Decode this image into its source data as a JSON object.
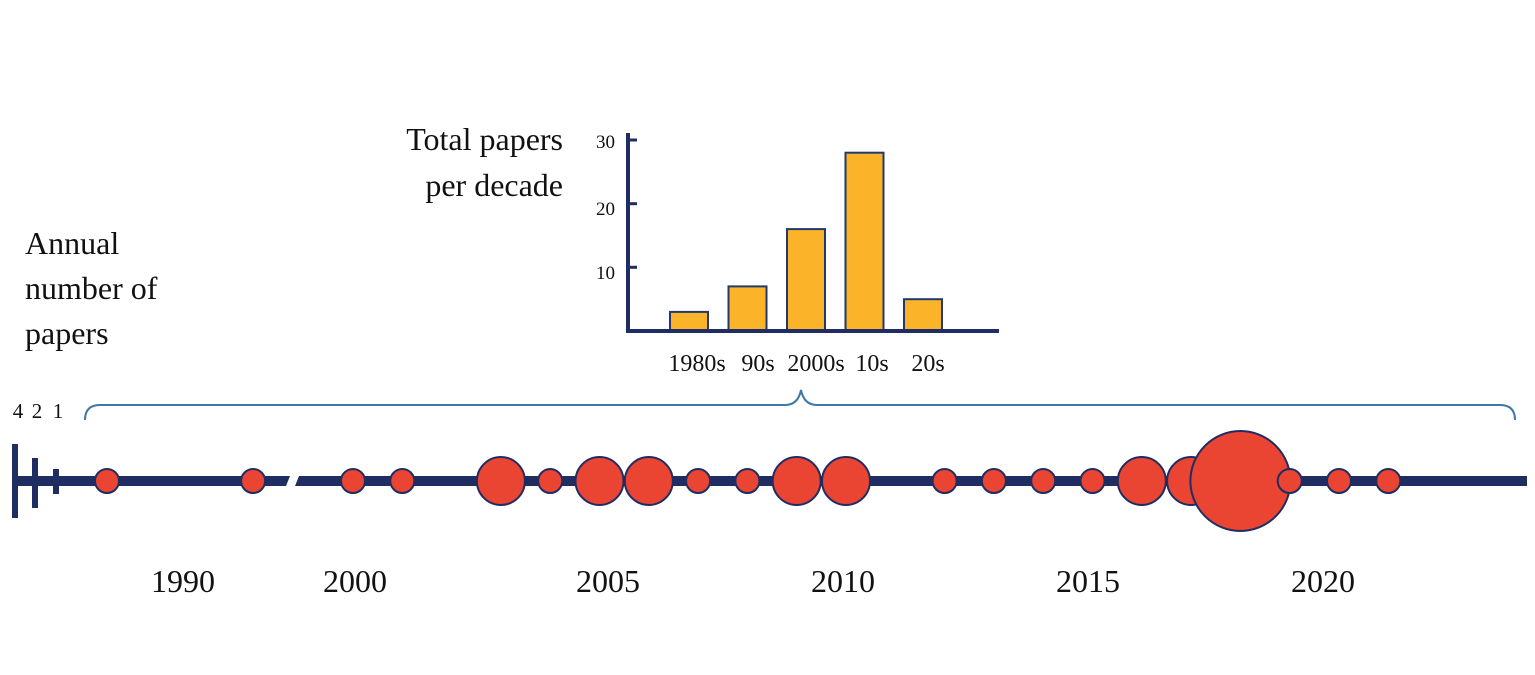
{
  "chart_data": [
    {
      "type": "bar",
      "title": [
        "Total papers",
        "per decade"
      ],
      "categories": [
        "1980s",
        "90s",
        "2000s",
        "10s",
        "20s"
      ],
      "values": [
        3,
        7,
        16,
        28,
        5
      ],
      "ylim": [
        0,
        30
      ],
      "yticks": [
        10,
        20,
        30
      ],
      "grid": false
    },
    {
      "type": "scatter",
      "title": [
        "Annual",
        "number of",
        "papers"
      ],
      "size_legend": [
        "4",
        "2",
        "1"
      ],
      "axis_break_between": [
        1993,
        1998
      ],
      "xtick_labels": [
        {
          "x": 1990,
          "label": "1990"
        },
        {
          "x": 2000,
          "label": "2000"
        },
        {
          "x": 2005,
          "label": "2005"
        },
        {
          "x": 2010,
          "label": "2010"
        },
        {
          "x": 2015,
          "label": "2015"
        },
        {
          "x": 2020,
          "label": "2020"
        }
      ],
      "points": [
        {
          "year": 1988,
          "papers": 1
        },
        {
          "year": 1991,
          "papers": 1
        },
        {
          "year": 2000,
          "papers": 1
        },
        {
          "year": 2001,
          "papers": 1
        },
        {
          "year": 2003,
          "papers": 2
        },
        {
          "year": 2004,
          "papers": 1
        },
        {
          "year": 2005,
          "papers": 2
        },
        {
          "year": 2006,
          "papers": 2
        },
        {
          "year": 2007,
          "papers": 1
        },
        {
          "year": 2008,
          "papers": 1
        },
        {
          "year": 2009,
          "papers": 2
        },
        {
          "year": 2010,
          "papers": 2
        },
        {
          "year": 2012,
          "papers": 1
        },
        {
          "year": 2013,
          "papers": 1
        },
        {
          "year": 2014,
          "papers": 1
        },
        {
          "year": 2015,
          "papers": 1
        },
        {
          "year": 2016,
          "papers": 2
        },
        {
          "year": 2017,
          "papers": 2
        },
        {
          "year": 2018,
          "papers": 4
        },
        {
          "year": 2019,
          "papers": 1
        },
        {
          "year": 2020,
          "papers": 1
        },
        {
          "year": 2021,
          "papers": 1
        }
      ]
    }
  ],
  "colors": {
    "axis": "#1f2d63",
    "bar_fill": "#fbb42a",
    "bar_stroke": "#1f3a6b",
    "dot_fill": "#ea4433",
    "dot_stroke": "#1f2d63",
    "brace": "#3f77a8"
  }
}
